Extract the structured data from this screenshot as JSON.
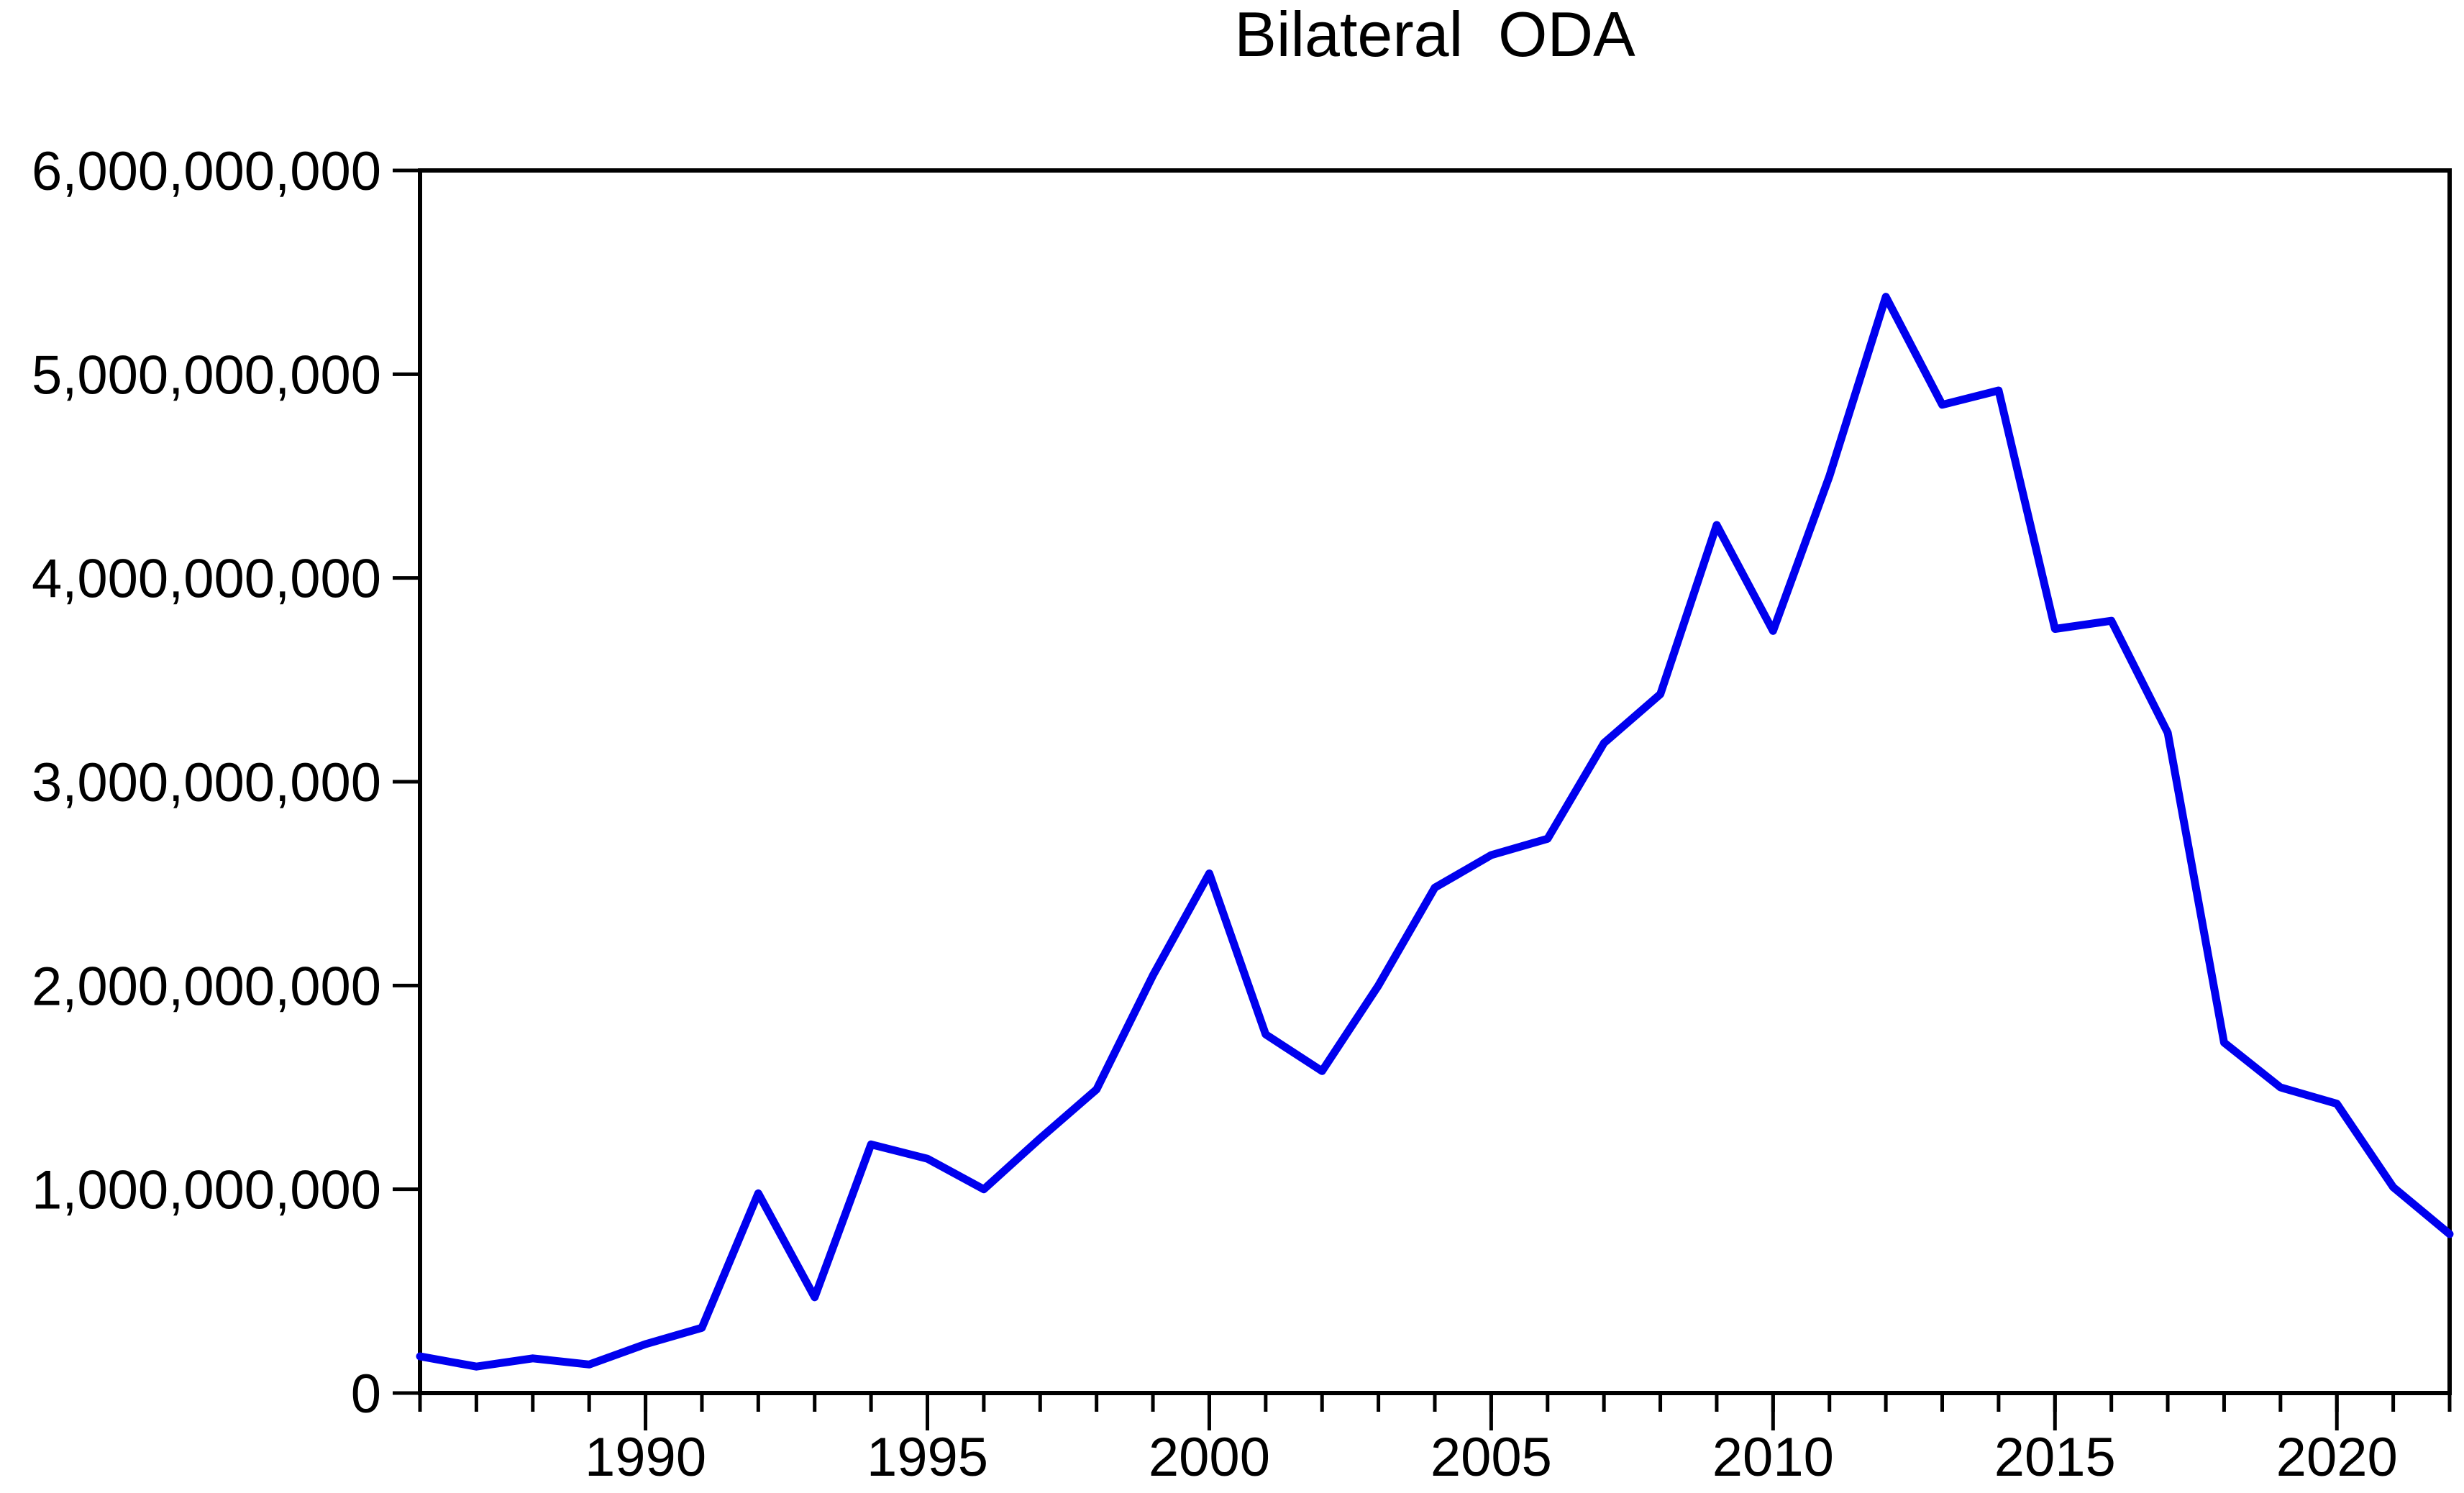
{
  "title": "Bilateral  ODA",
  "chart_data": {
    "type": "line",
    "title": "Bilateral  ODA",
    "series_name": "Bilateral ODA",
    "x": [
      1986,
      1987,
      1988,
      1989,
      1990,
      1991,
      1992,
      1993,
      1994,
      1995,
      1996,
      1997,
      1998,
      1999,
      2000,
      2001,
      2002,
      2003,
      2004,
      2005,
      2006,
      2007,
      2008,
      2009,
      2010,
      2011,
      2012,
      2013,
      2014,
      2015,
      2016,
      2017,
      2018,
      2019,
      2020,
      2021,
      2022
    ],
    "values": [
      180000000,
      130000000,
      170000000,
      140000000,
      240000000,
      320000000,
      980000000,
      470000000,
      1220000000,
      1150000000,
      1000000000,
      1250000000,
      1490000000,
      2050000000,
      2550000000,
      1760000000,
      1580000000,
      2000000000,
      2480000000,
      2640000000,
      2720000000,
      3190000000,
      3430000000,
      4260000000,
      3740000000,
      4500000000,
      5380000000,
      4850000000,
      4920000000,
      3750000000,
      3790000000,
      3240000000,
      1720000000,
      1500000000,
      1420000000,
      1010000000,
      780000000
    ],
    "xlabel": "",
    "ylabel": "",
    "x_range": [
      1986,
      2022
    ],
    "ylim": [
      0,
      6000000000
    ],
    "y_ticks": [
      {
        "value": 0,
        "label": "0"
      },
      {
        "value": 1000000000,
        "label": "1,000,000,000"
      },
      {
        "value": 2000000000,
        "label": "2,000,000,000"
      },
      {
        "value": 3000000000,
        "label": "3,000,000,000"
      },
      {
        "value": 4000000000,
        "label": "4,000,000,000"
      },
      {
        "value": 5000000000,
        "label": "5,000,000,000"
      },
      {
        "value": 6000000000,
        "label": "6,000,000,000"
      }
    ],
    "x_major_ticks": [
      {
        "value": 1990,
        "label": "1990"
      },
      {
        "value": 1995,
        "label": "1995"
      },
      {
        "value": 2000,
        "label": "2000"
      },
      {
        "value": 2005,
        "label": "2005"
      },
      {
        "value": 2010,
        "label": "2010"
      },
      {
        "value": 2015,
        "label": "2015"
      },
      {
        "value": 2020,
        "label": "2020"
      }
    ],
    "grid": "off",
    "legend": "none",
    "line_color": "#0000ee",
    "axis_color": "#000000",
    "background_color": "#ffffff"
  }
}
